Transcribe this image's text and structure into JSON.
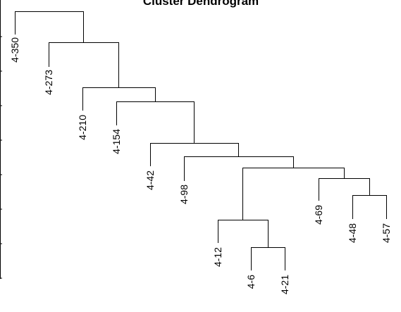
{
  "title": "Cluster Dendrogram",
  "leaves": [
    "4-350",
    "4-273",
    "4-210",
    "4-154",
    "4-42",
    "4-98",
    "4-12",
    "4-6",
    "4-21",
    "4-69",
    "4-48",
    "4-57"
  ]
}
